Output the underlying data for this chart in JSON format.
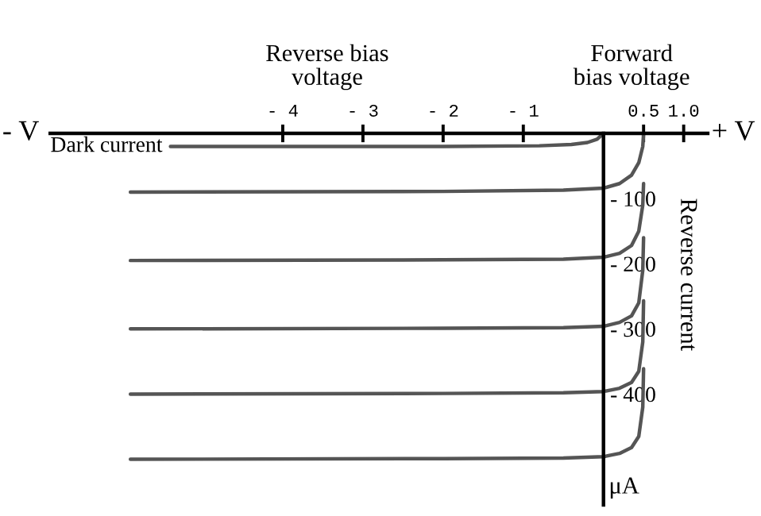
{
  "chart_data": {
    "type": "line",
    "ylabel": "Reverse current",
    "annotations": [
      "Reverse bias\nvoltage",
      "Forward\nbias voltage",
      "- V",
      "+ V",
      "μA"
    ],
    "xlim": [
      -6.9,
      1.3
    ],
    "xticks": [
      {
        "value": -4,
        "label": "- 4"
      },
      {
        "value": -3,
        "label": "- 3"
      },
      {
        "value": -2,
        "label": "- 2"
      },
      {
        "value": -1,
        "label": "- 1"
      },
      0.5,
      {
        "value": 1,
        "label": "1.0"
      }
    ],
    "ylim": [
      -570,
      0
    ],
    "yticks": [
      {
        "value": -100,
        "label": "- 100"
      },
      {
        "value": -200,
        "label": "- 200"
      },
      {
        "value": -300,
        "label": "- 300"
      },
      {
        "value": -400,
        "label": "- 400"
      }
    ],
    "series": [
      {
        "name": "Dark current",
        "color": "#555555",
        "x": [
          -5.4,
          -2,
          -0.8,
          -0.4,
          -0.2,
          -0.08,
          0
        ],
        "values": [
          -20,
          -20,
          -19,
          -17,
          -14,
          -9,
          0
        ]
      },
      {
        "color": "#555555",
        "x": [
          -5.9,
          -2,
          -0.5,
          0,
          0.2,
          0.35,
          0.44,
          0.49,
          0.5
        ],
        "values": [
          -90,
          -89,
          -87,
          -84,
          -77,
          -64,
          -45,
          -20,
          0
        ]
      },
      {
        "color": "#555555",
        "x": [
          -5.9,
          -2,
          -0.5,
          0,
          0.2,
          0.35,
          0.44,
          0.49,
          0.5
        ],
        "values": [
          -195,
          -194,
          -193,
          -190,
          -184,
          -172,
          -150,
          -110,
          -77
        ]
      },
      {
        "color": "#555555",
        "x": [
          -5.9,
          -2,
          -0.5,
          0,
          0.2,
          0.35,
          0.44,
          0.49,
          0.5
        ],
        "values": [
          -300,
          -299,
          -298,
          -296,
          -290,
          -280,
          -260,
          -210,
          -160
        ]
      },
      {
        "color": "#555555",
        "x": [
          -5.9,
          -2,
          -0.5,
          0,
          0.2,
          0.35,
          0.44,
          0.49,
          0.5
        ],
        "values": [
          -400,
          -399,
          -398,
          -396,
          -391,
          -382,
          -365,
          -320,
          -257
        ]
      },
      {
        "color": "#555555",
        "x": [
          -5.9,
          -2,
          -0.5,
          0,
          0.2,
          0.35,
          0.44,
          0.49,
          0.5
        ],
        "values": [
          -500,
          -499,
          -498,
          -496,
          -491,
          -482,
          -465,
          -420,
          -361
        ]
      }
    ],
    "legend": false,
    "grid": false,
    "marker": "none",
    "line_style": "solid"
  }
}
